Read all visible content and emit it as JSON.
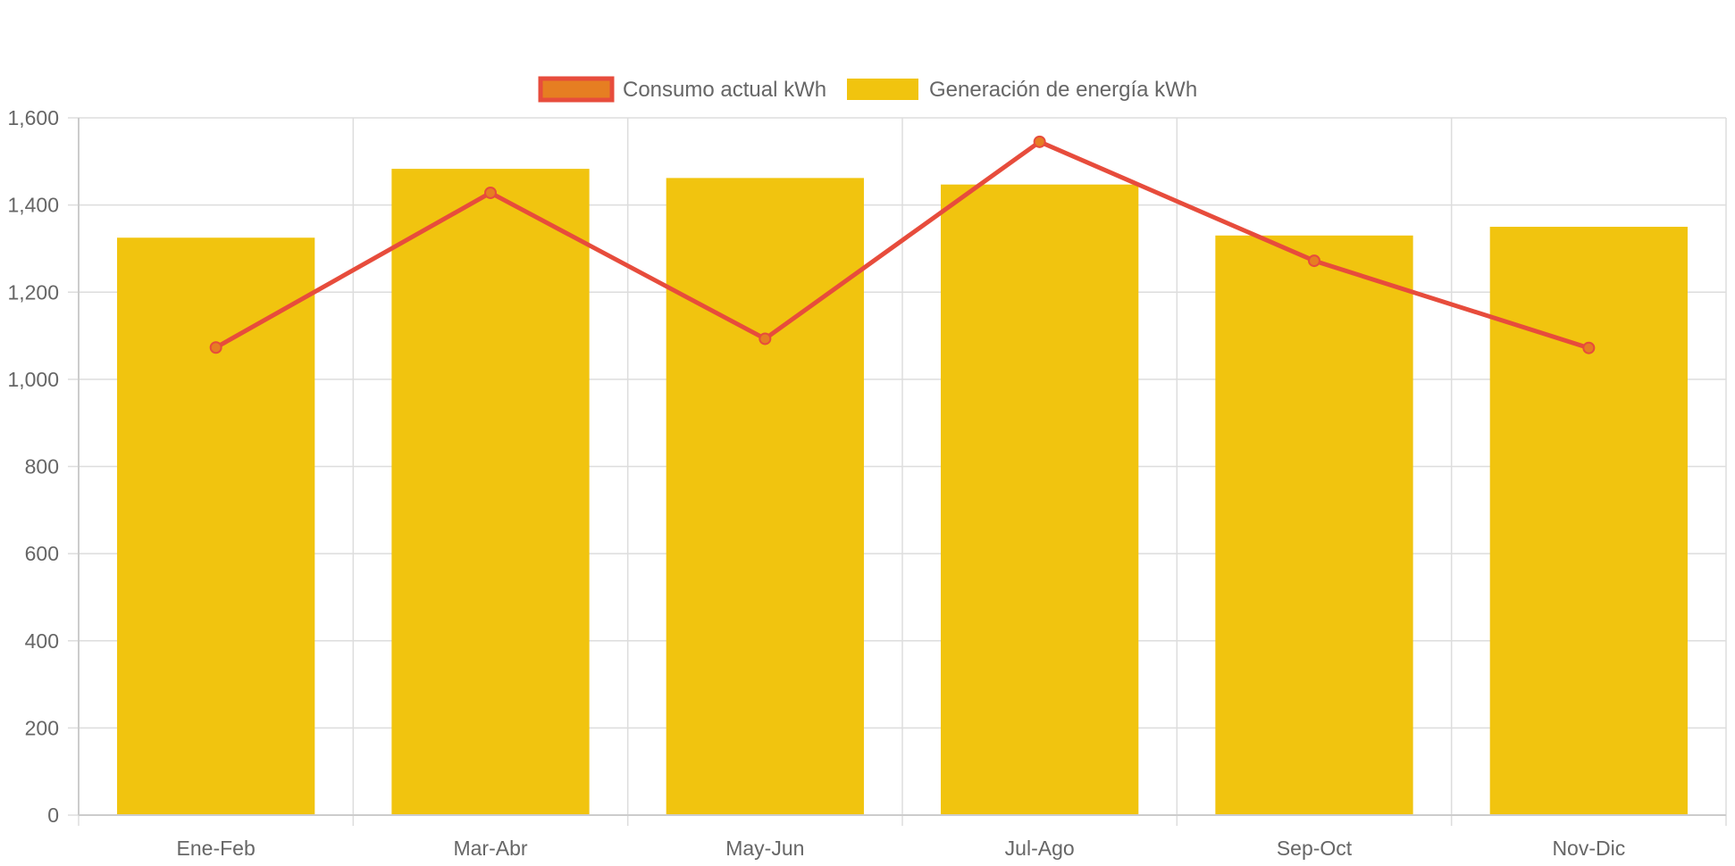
{
  "chart_data": {
    "type": "bar",
    "categories": [
      "Ene-Feb",
      "Mar-Abr",
      "May-Jun",
      "Jul-Ago",
      "Sep-Oct",
      "Nov-Dic"
    ],
    "series": [
      {
        "name": "Consumo actual kWh",
        "type": "line",
        "values": [
          1073,
          1428,
          1093,
          1545,
          1272,
          1072
        ],
        "color": "#e74c3c",
        "point_color": "#e67e22"
      },
      {
        "name": "Generación de energía kWh",
        "type": "bar",
        "values": [
          1325,
          1483,
          1462,
          1447,
          1330,
          1350
        ],
        "color": "#f1c40f"
      }
    ],
    "title": "",
    "xlabel": "",
    "ylabel": "",
    "ylim": [
      0,
      1600
    ],
    "yticks": [
      "0",
      "200",
      "400",
      "600",
      "800",
      "1,000",
      "1,200",
      "1,400",
      "1,600"
    ],
    "grid": true,
    "legend": "top-center",
    "grid_color": "#dddddd",
    "axis_color": "#cccccc",
    "text_color": "#666666"
  }
}
